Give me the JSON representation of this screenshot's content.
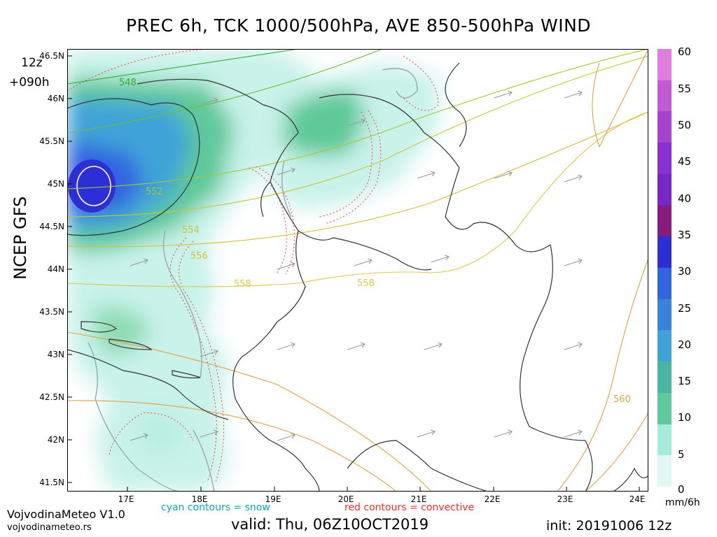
{
  "title": "PREC 6h, TCK 1000/500hPa, AVE 850-500hPa WIND",
  "run_hour": "12z",
  "forecast_step": "+090h",
  "model_name": "NCEP GFS",
  "latitude_labels": [
    "46.5N",
    "46N",
    "45.5N",
    "45N",
    "44.5N",
    "44N",
    "43.5N",
    "43N",
    "42.5N",
    "42N",
    "41.5N"
  ],
  "longitude_labels": [
    "17E",
    "18E",
    "19E",
    "20E",
    "21E",
    "22E",
    "23E",
    "24E"
  ],
  "thickness_labels": [
    "548",
    "552",
    "554",
    "556",
    "558",
    "558",
    "560"
  ],
  "colorbar": {
    "labels": [
      "60",
      "55",
      "50",
      "45",
      "40",
      "35",
      "30",
      "25",
      "20",
      "15",
      "10",
      "5",
      "0"
    ],
    "unit": "mm/6h",
    "colors": [
      "#e07ee0",
      "#c25ad6",
      "#a642d0",
      "#8a2fd2",
      "#7726c9",
      "#861c7c",
      "#2d2fd6",
      "#3264e0",
      "#3a83dc",
      "#3fa3d8",
      "#48b6a3",
      "#5ec99a",
      "#a6ecdc",
      "#e2f8f4"
    ]
  },
  "brand_name": "VojvodinaMeteo V1.0",
  "brand_url": "vojvodinameteo.rs",
  "snow_note": "cyan contours = snow",
  "convective_note": "red contours = convective",
  "valid_time": "valid: Thu, 06Z10OCT2019",
  "init_time": "init: 20191006 12z"
}
